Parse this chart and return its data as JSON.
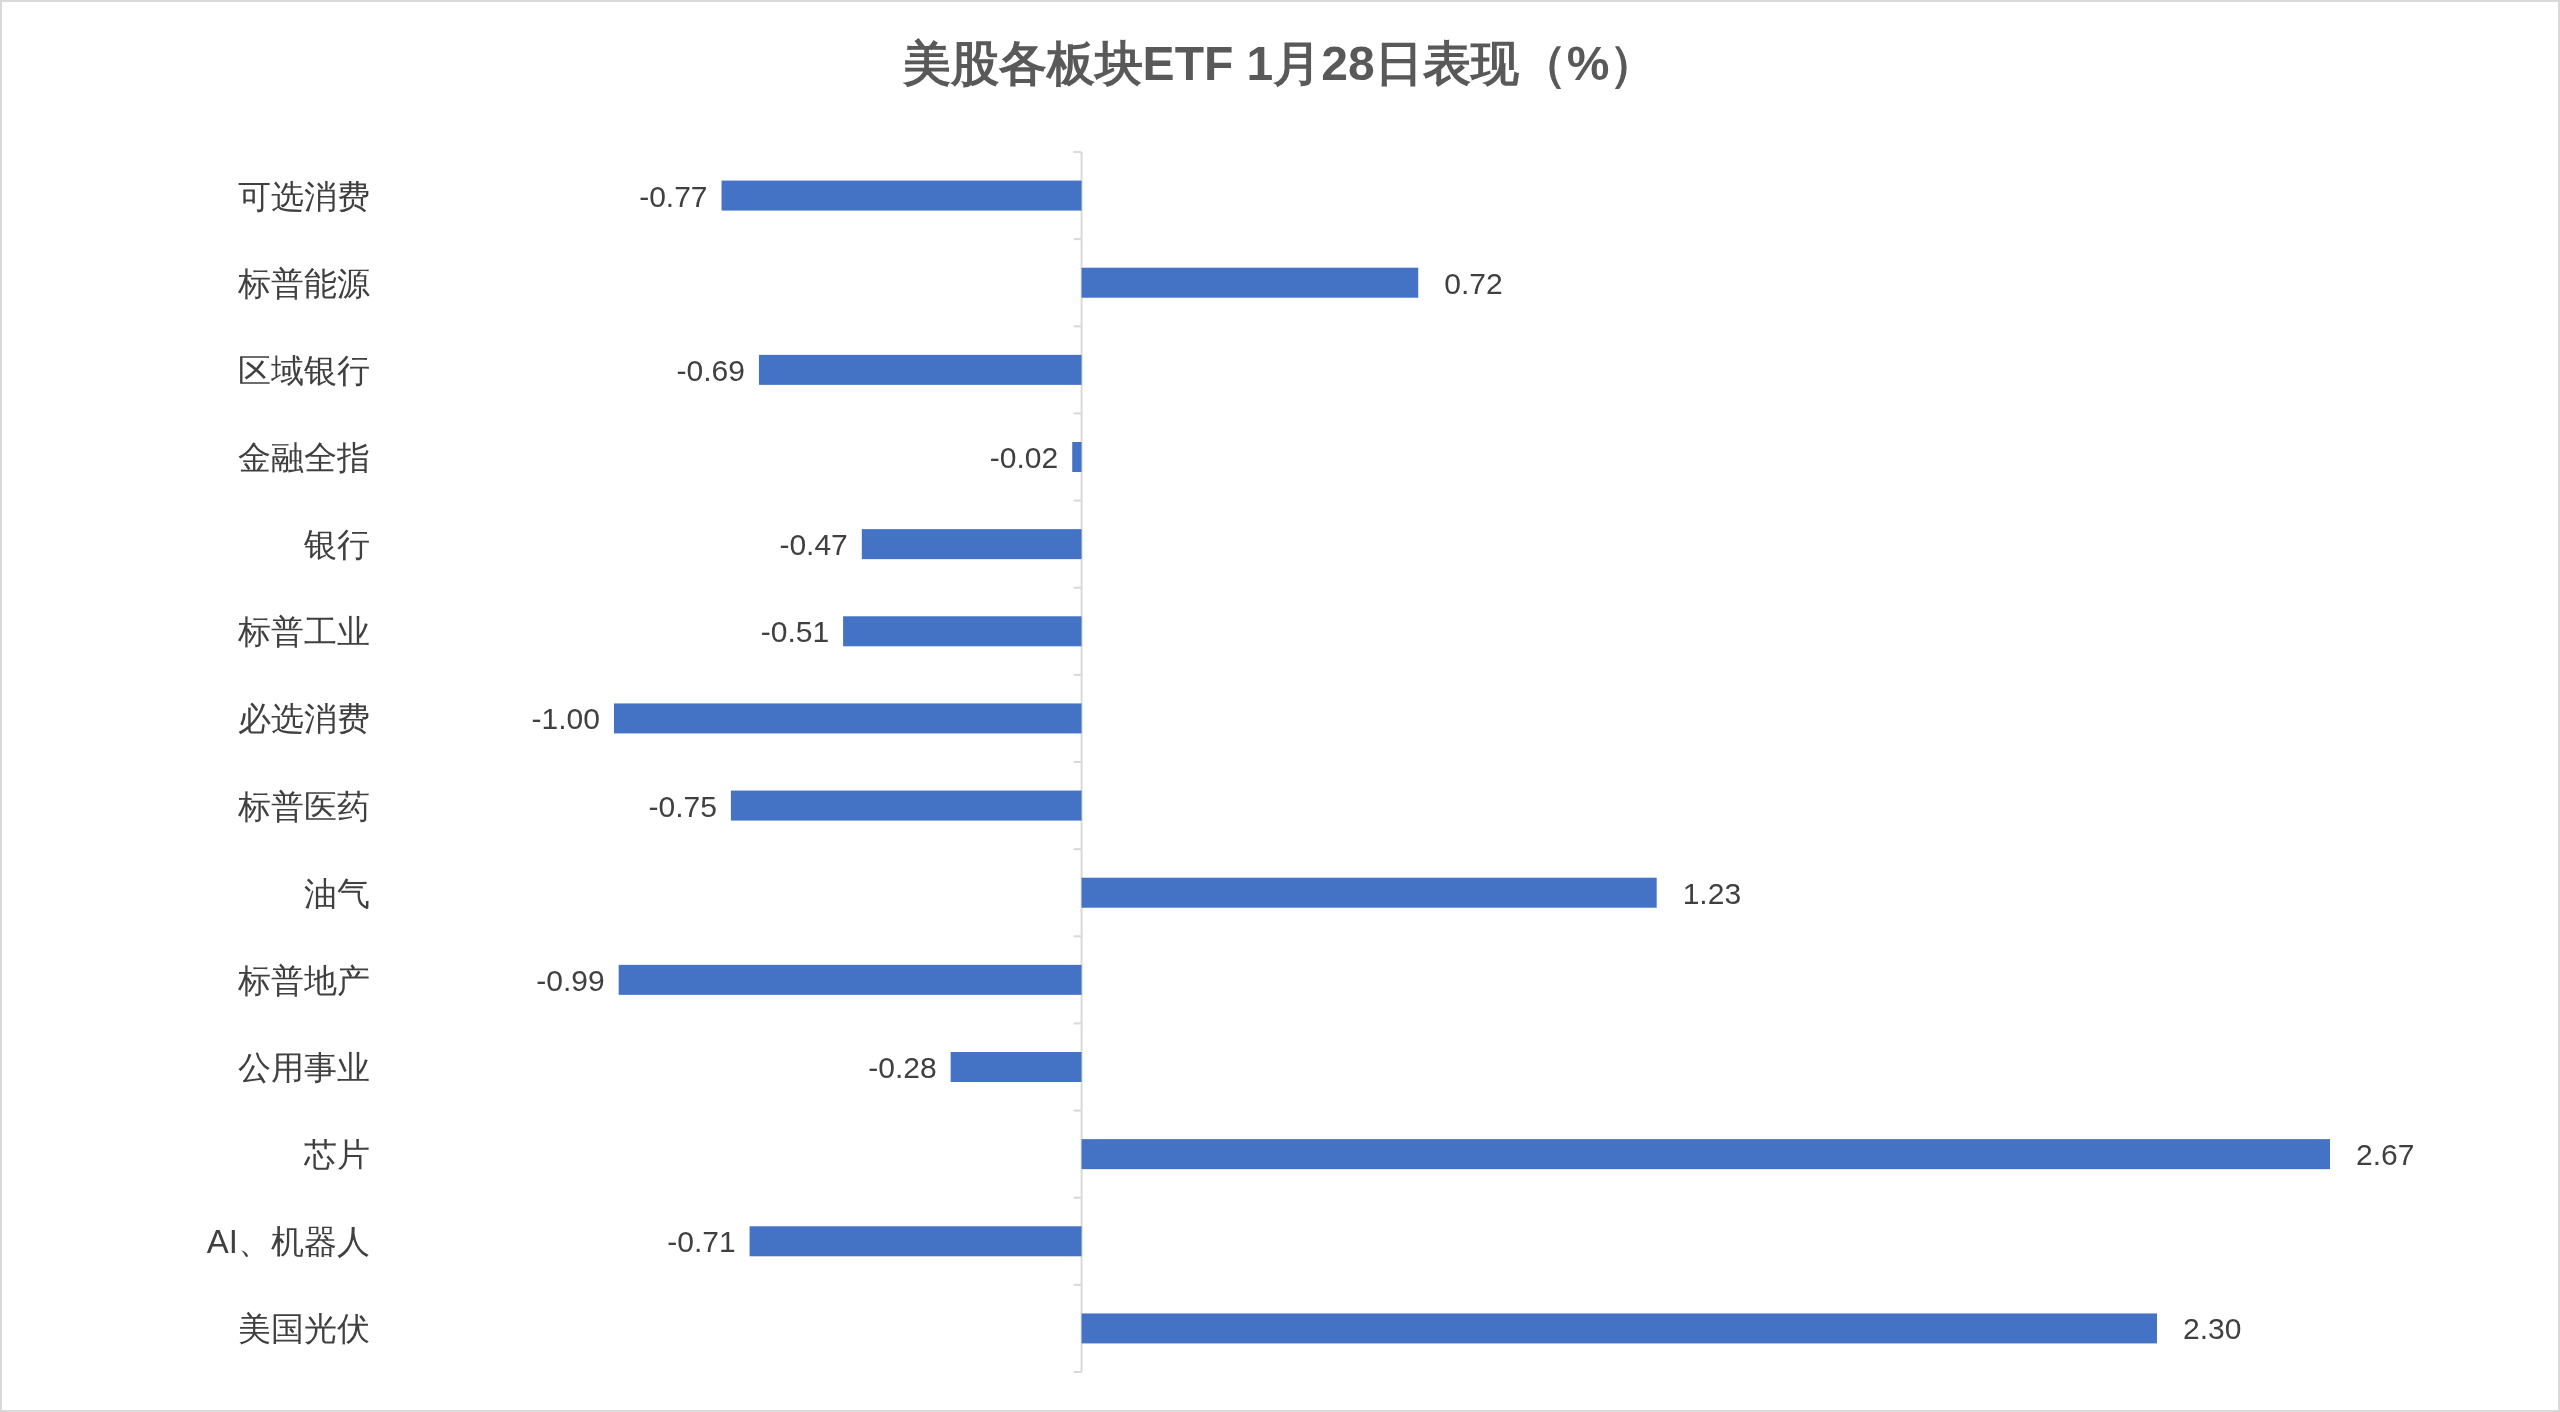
{
  "chart_data": {
    "type": "bar",
    "orientation": "horizontal",
    "title": "美股各板块ETF  1月28日表现（%）",
    "categories": [
      "可选消费",
      "标普能源",
      "区域银行",
      "金融全指",
      "银行",
      "标普工业",
      "必选消费",
      "标普医药",
      "油气",
      "标普地产",
      "公用事业",
      "芯片",
      "AI、机器人",
      "美国光伏"
    ],
    "values": [
      -0.77,
      0.72,
      -0.69,
      -0.02,
      -0.47,
      -0.51,
      -1.0,
      -0.75,
      1.23,
      -0.99,
      -0.28,
      2.67,
      -0.71,
      2.3
    ],
    "value_labels": [
      "-0.77",
      "0.72",
      "-0.69",
      "-0.02",
      "-0.47",
      "-0.51",
      "-1.00",
      "-0.75",
      "1.23",
      "-0.99",
      "-0.28",
      "2.67",
      "-0.71",
      "2.30"
    ],
    "color": "#4472c4"
  }
}
